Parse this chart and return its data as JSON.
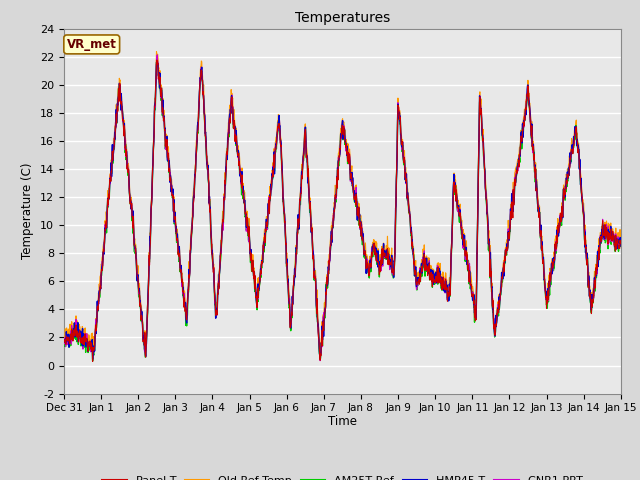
{
  "title": "Temperatures",
  "ylabel": "Temperature (C)",
  "xlabel": "Time",
  "annotation": "VR_met",
  "ylim": [
    -2,
    24
  ],
  "yticks": [
    -2,
    0,
    2,
    4,
    6,
    8,
    10,
    12,
    14,
    16,
    18,
    20,
    22,
    24
  ],
  "series_colors": {
    "Panel T": "#cc0000",
    "Old Ref Temp": "#ff9900",
    "AM25T Ref": "#00cc00",
    "HMP45 T": "#0000cc",
    "CNR1 PRT": "#cc00cc"
  },
  "bg_color": "#d8d8d8",
  "plot_bg_color": "#e8e8e8",
  "n_days": 15,
  "seed": 42,
  "peak_days": [
    1.5,
    2.5,
    3.7,
    4.5,
    5.8,
    6.5,
    7.5,
    9.0,
    11.2,
    12.5,
    13.8
  ],
  "peak_heights": [
    19.5,
    22.0,
    21.5,
    19.0,
    17.5,
    16.5,
    17.2,
    18.5,
    13.0,
    19.5,
    17.0
  ],
  "trough_levels": [
    4.5,
    0.2,
    3.0,
    4.5,
    2.5,
    0.5,
    6.5,
    5.5,
    5.0,
    2.0,
    4.5
  ]
}
